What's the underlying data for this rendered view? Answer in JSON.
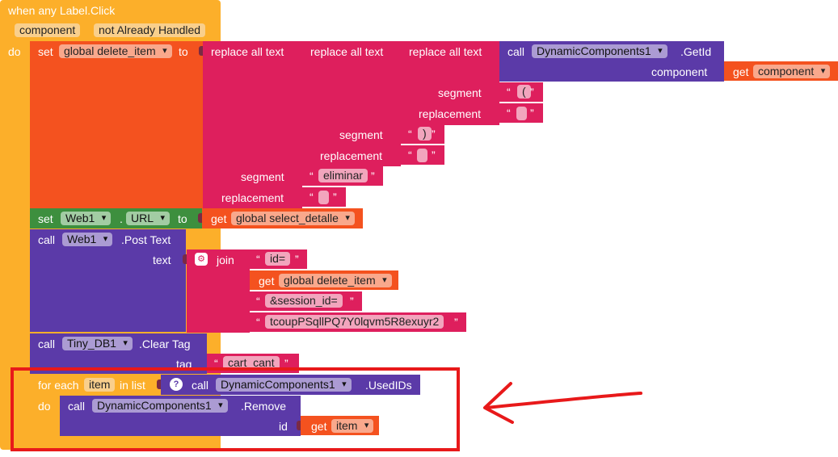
{
  "event": {
    "header": "when any Label.Click",
    "params": [
      "component",
      "not Already Handled"
    ],
    "do": "do"
  },
  "set1": {
    "set": "set",
    "var": "global delete_item",
    "to": "to",
    "replace1": "replace all text",
    "replace2": "replace all text",
    "replace3": "replace all text",
    "call": "call",
    "dc": "DynamicComponents1",
    "getid": ".GetId",
    "component_label": "component",
    "get": "get",
    "get_component": "component",
    "segment": "segment",
    "replacement": "replacement",
    "seg1_value": "(",
    "rep1_value": "",
    "seg2_value": ")",
    "rep2_value": "",
    "seg3_value": "eliminar",
    "rep3_value": ""
  },
  "set2": {
    "set": "set",
    "comp": "Web1",
    "dot": ".",
    "prop": "URL",
    "to": "to",
    "get": "get",
    "var": "global select_detalle"
  },
  "post": {
    "call": "call",
    "comp": "Web1",
    "method": ".Post Text",
    "text_label": "text",
    "join": "join",
    "s1": "id=",
    "get": "get",
    "var": "global delete_item",
    "s2": "&session_id=",
    "s3": "tcoupPSqllPQ7Y0lqvm5R8exuyr2"
  },
  "clear": {
    "call": "call",
    "comp": "Tiny_DB1",
    "method": ".Clear Tag",
    "tag_label": "tag",
    "tag_value": "cart_cant"
  },
  "foreach": {
    "label": "for each",
    "var": "item",
    "inlist": "in list",
    "call": "call",
    "dc": "DynamicComponents1",
    "method": ".UsedIDs",
    "do": "do",
    "call2": "call",
    "dc2": "DynamicComponents1",
    "remove": ".Remove",
    "id_label": "id",
    "get": "get",
    "get_item": "item"
  },
  "quote_open": "“",
  "quote_close": "”",
  "annotation_color": "#e8191a"
}
